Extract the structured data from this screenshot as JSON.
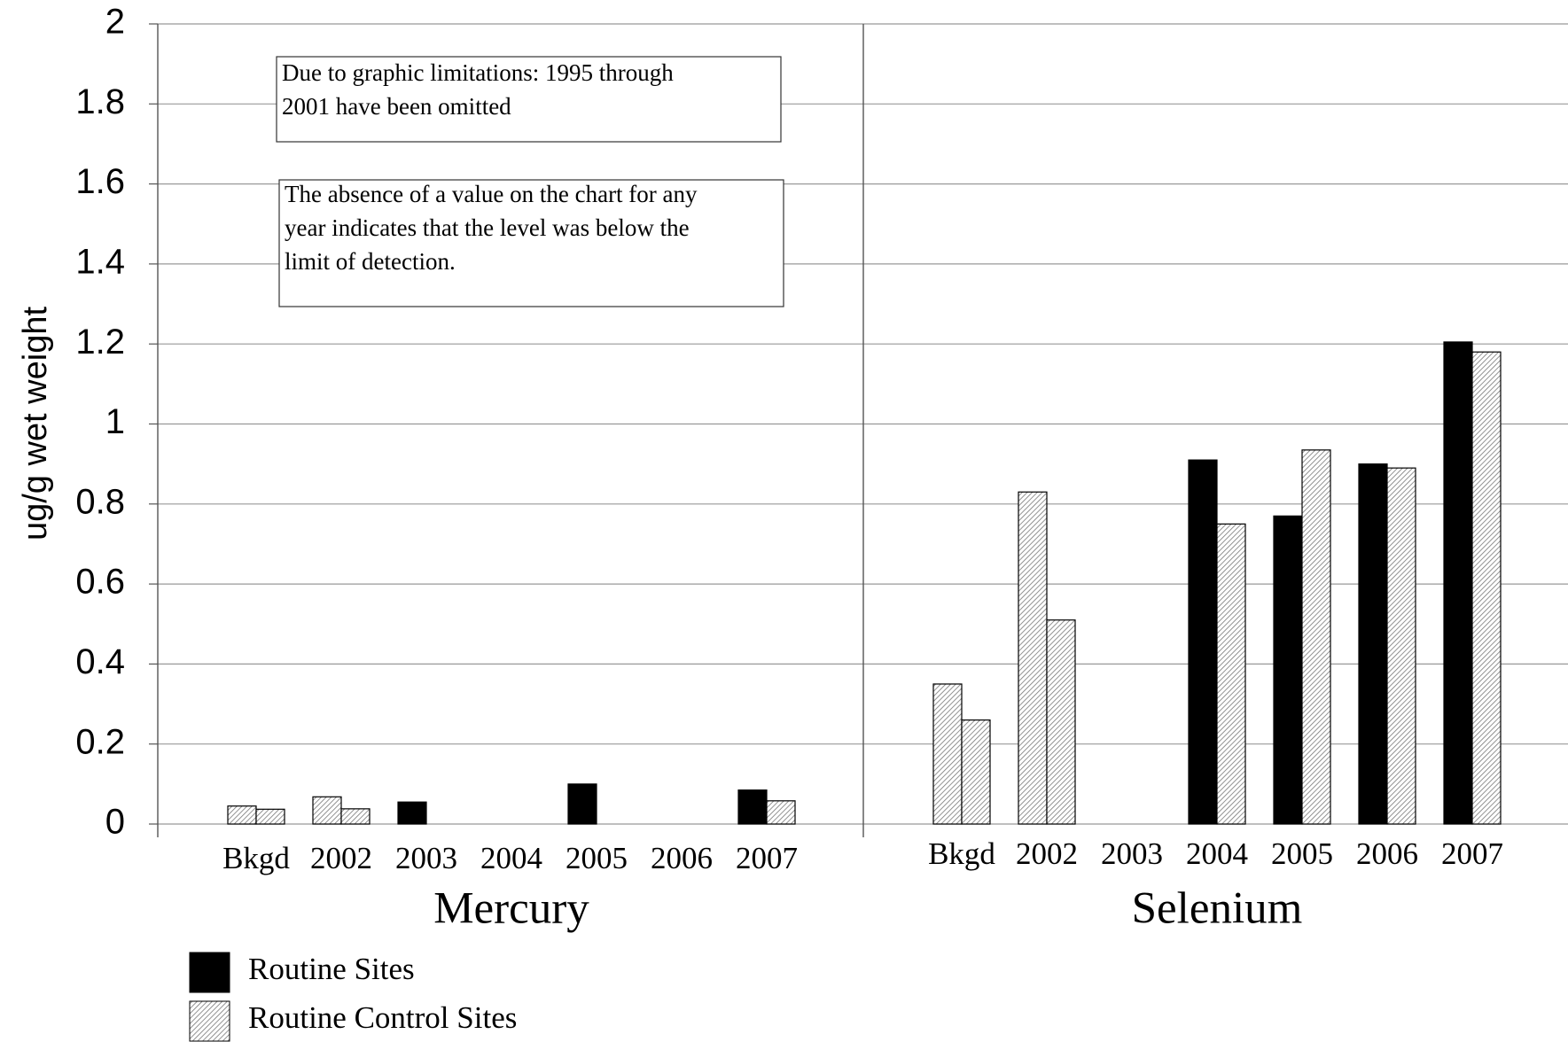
{
  "chart_data": {
    "type": "grouped-bar",
    "ylabel": "ug/g wet weight",
    "ylim": [
      0,
      2
    ],
    "yticks": [
      0,
      0.2,
      0.4,
      0.6,
      0.8,
      1,
      1.2,
      1.4,
      1.6,
      1.8,
      2
    ],
    "grid": true,
    "series": [
      {
        "name": "Routine Sites",
        "color": "#000000"
      },
      {
        "name": "Routine Control Sites",
        "color": "hatch"
      }
    ],
    "groups": [
      {
        "name": "Mercury",
        "categories": [
          "Bkgd",
          "2002",
          "2003",
          "2004",
          "2005",
          "2006",
          "2007"
        ],
        "values": [
          [
            0.045,
            0.068,
            0.055,
            null,
            0.1,
            null,
            0.085
          ],
          [
            0.037,
            0.038,
            null,
            null,
            null,
            null,
            0.058
          ]
        ],
        "fills": [
          [
            "hatch",
            "hatch",
            "#000000",
            "#000000",
            "#000000",
            "#000000",
            "#000000"
          ],
          [
            "hatch",
            "hatch",
            "hatch",
            "hatch",
            "hatch",
            "hatch",
            "hatch"
          ]
        ]
      },
      {
        "name": "Selenium",
        "categories": [
          "Bkgd",
          "2002",
          "2003",
          "2004",
          "2005",
          "2006",
          "2007"
        ],
        "values": [
          [
            0.35,
            0.83,
            null,
            0.91,
            0.77,
            0.9,
            1.205
          ],
          [
            0.26,
            0.51,
            null,
            0.75,
            0.935,
            0.89,
            1.18
          ]
        ],
        "fills": [
          [
            "hatch",
            "hatch",
            "#000000",
            "#000000",
            "#000000",
            "#000000",
            "#000000"
          ],
          [
            "hatch",
            "hatch",
            "hatch",
            "hatch",
            "hatch",
            "hatch",
            "hatch"
          ]
        ]
      }
    ],
    "annotations": [
      {
        "lines": [
          "Due to graphic limitations: 1995 through",
          "2001 have been omitted"
        ]
      },
      {
        "lines": [
          "The absence of a value on the chart for any",
          "year indicates that the level was below the",
          "limit of detection."
        ]
      }
    ]
  }
}
